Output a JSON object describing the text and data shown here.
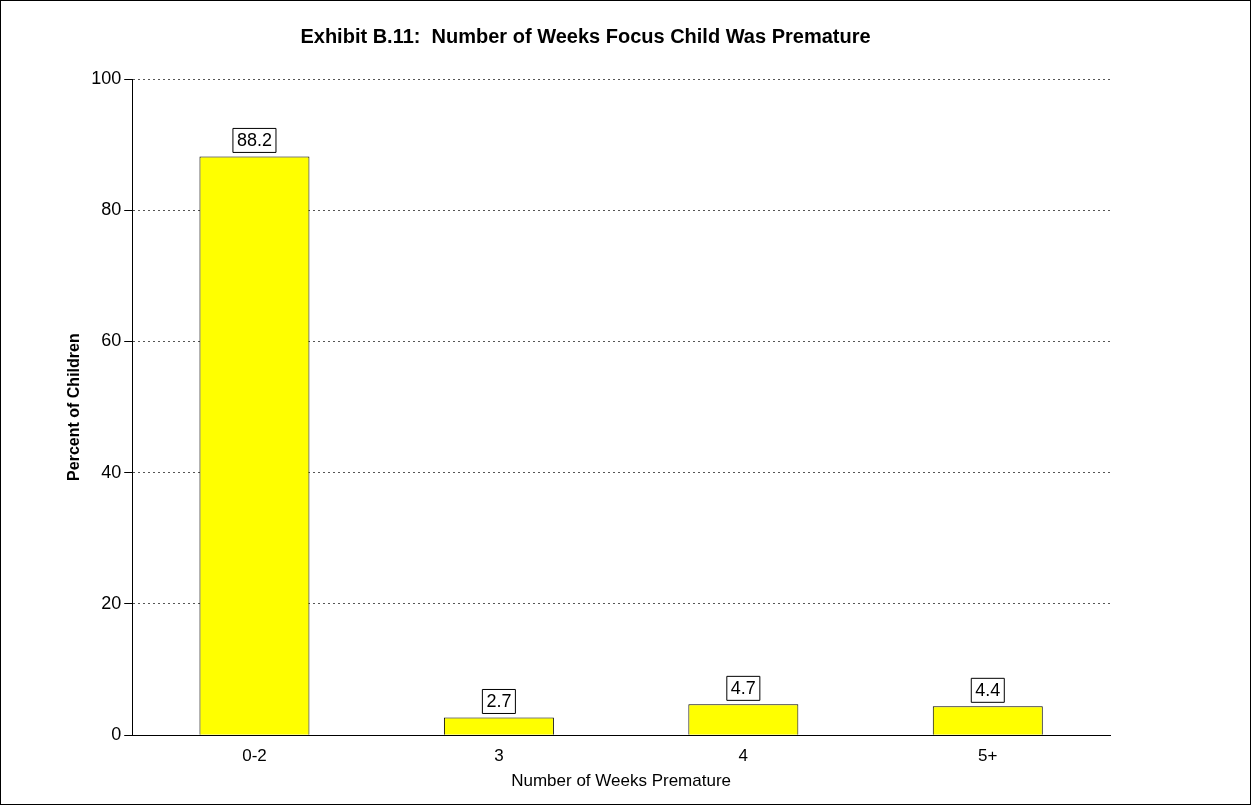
{
  "chart_data": {
    "type": "bar",
    "title": "Exhibit B.11:  Number of Weeks Focus Child Was Premature",
    "xlabel": "Number of Weeks Premature",
    "ylabel": "Percent of Children",
    "categories": [
      "0-2",
      "3",
      "4",
      "5+"
    ],
    "values": [
      88.2,
      2.7,
      4.7,
      4.4
    ],
    "color": "#ffff00",
    "ylim": [
      0,
      100
    ],
    "yticks": [
      0,
      20,
      40,
      60,
      80,
      100
    ],
    "grid": "y",
    "data_labels": true,
    "legend": false
  }
}
